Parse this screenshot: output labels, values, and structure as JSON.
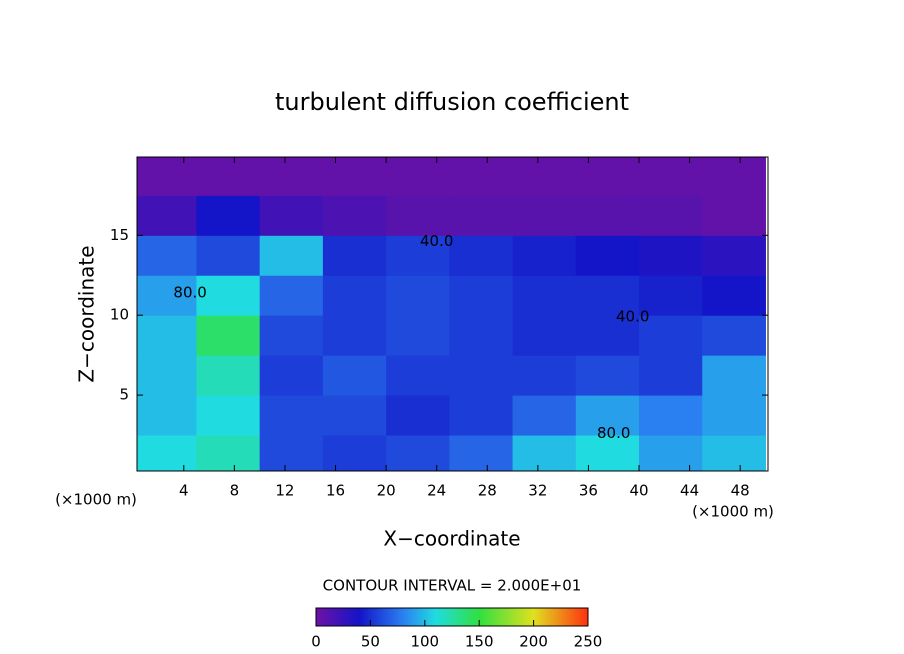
{
  "chart_data": {
    "type": "heatmap",
    "title": "turbulent diffusion coefficient",
    "xlabel": "X−coordinate",
    "ylabel": "Z−coordinate",
    "x_unit_label": "(×1000 m)",
    "y_unit_label": "(×1000 m)",
    "xlim": [
      0.3,
      50.2
    ],
    "ylim": [
      0.25,
      19.9
    ],
    "xticks": [
      4,
      8,
      12,
      16,
      20,
      24,
      28,
      32,
      36,
      40,
      44,
      48
    ],
    "yticks": [
      5,
      10,
      15
    ],
    "x_edges": [
      0,
      5,
      10,
      15,
      20,
      25,
      30,
      35,
      40,
      45,
      50
    ],
    "y_edges": [
      0,
      2.5,
      5,
      7.5,
      10,
      12.5,
      15,
      17.5,
      20
    ],
    "z": [
      [
        110,
        120,
        60,
        55,
        60,
        70,
        100,
        110,
        90,
        100
      ],
      [
        100,
        110,
        60,
        60,
        50,
        55,
        70,
        90,
        80,
        90
      ],
      [
        100,
        120,
        55,
        65,
        55,
        55,
        55,
        60,
        55,
        90
      ],
      [
        100,
        140,
        60,
        55,
        60,
        55,
        50,
        50,
        55,
        60
      ],
      [
        90,
        110,
        70,
        55,
        60,
        55,
        50,
        50,
        45,
        40
      ],
      [
        70,
        60,
        100,
        50,
        55,
        50,
        45,
        40,
        35,
        30
      ],
      [
        20,
        40,
        20,
        15,
        10,
        10,
        10,
        10,
        10,
        5
      ],
      [
        5,
        5,
        5,
        5,
        5,
        5,
        5,
        5,
        5,
        5
      ]
    ],
    "colormap": [
      {
        "value": 0,
        "color": "#6e12a4"
      },
      {
        "value": 40,
        "color": "#1414c8"
      },
      {
        "value": 80,
        "color": "#2a80f0"
      },
      {
        "value": 110,
        "color": "#20dce0"
      },
      {
        "value": 150,
        "color": "#30e040"
      },
      {
        "value": 200,
        "color": "#e0e020"
      },
      {
        "value": 250,
        "color": "#ff3010"
      }
    ],
    "zlim": [
      0,
      250
    ],
    "colorbar_ticks": [
      0,
      50,
      100,
      150,
      200,
      250
    ],
    "colorbar_label": "CONTOUR INTERVAL = 2.000E+01",
    "annotations": [
      {
        "text": "40.0",
        "x": 24,
        "y": 14.6
      },
      {
        "text": "40.0",
        "x": 39.5,
        "y": 9.9
      },
      {
        "text": "80.0",
        "x": 38,
        "y": 2.6
      },
      {
        "text": "80.0",
        "x": 4.5,
        "y": 11.4
      }
    ]
  }
}
